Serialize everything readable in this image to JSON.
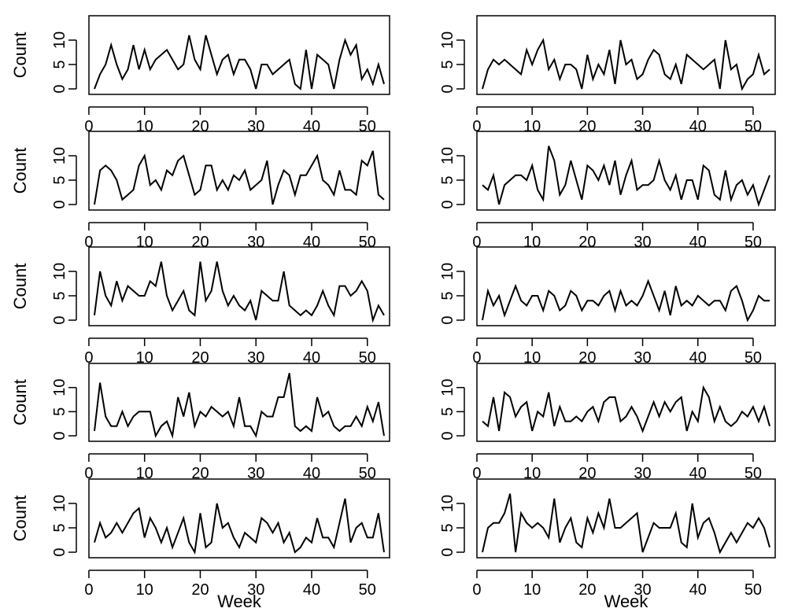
{
  "chart_data": [
    {
      "type": "line",
      "ylabel": "Count",
      "xlabel": "",
      "xlim": [
        1,
        53
      ],
      "ylim": [
        0,
        15
      ],
      "xticks": [
        0,
        10,
        20,
        30,
        40,
        50
      ],
      "yticks": [
        0,
        5,
        10
      ],
      "series": [
        {
          "x_start": 1,
          "values": [
            0,
            3,
            5,
            9,
            5,
            2,
            4,
            9,
            4,
            8,
            4,
            6,
            7,
            8,
            6,
            4,
            5,
            11,
            6,
            4,
            11,
            7,
            3,
            6,
            7,
            3,
            6,
            6,
            4,
            0,
            5,
            5,
            3,
            4,
            5,
            6,
            1,
            0,
            8,
            0,
            7,
            6,
            5,
            0,
            6,
            10,
            7,
            9,
            2,
            4,
            1,
            5,
            1
          ]
        }
      ]
    },
    {
      "type": "line",
      "ylabel": "",
      "xlabel": "",
      "xlim": [
        1,
        53
      ],
      "ylim": [
        0,
        15
      ],
      "xticks": [
        0,
        10,
        20,
        30,
        40,
        50
      ],
      "yticks": [
        0,
        5,
        10
      ],
      "series": [
        {
          "x_start": 1,
          "values": [
            0,
            4,
            6,
            5,
            6,
            5,
            4,
            3,
            8,
            5,
            8,
            10,
            4,
            6,
            2,
            5,
            5,
            4,
            0,
            7,
            2,
            5,
            3,
            8,
            1,
            10,
            5,
            6,
            2,
            3,
            6,
            8,
            7,
            3,
            2,
            5,
            1,
            7,
            6,
            5,
            4,
            5,
            6,
            0,
            10,
            4,
            5,
            0,
            2,
            3,
            7,
            3,
            4
          ]
        }
      ]
    },
    {
      "type": "line",
      "ylabel": "Count",
      "xlabel": "",
      "xlim": [
        1,
        53
      ],
      "ylim": [
        0,
        15
      ],
      "xticks": [
        0,
        10,
        20,
        30,
        40,
        50
      ],
      "yticks": [
        0,
        5,
        10
      ],
      "series": [
        {
          "x_start": 1,
          "values": [
            0,
            7,
            8,
            7,
            5,
            1,
            2,
            3,
            8,
            10,
            4,
            5,
            3,
            7,
            6,
            9,
            10,
            6,
            2,
            3,
            8,
            8,
            3,
            5,
            3,
            6,
            5,
            7,
            3,
            4,
            5,
            9,
            0,
            4,
            7,
            6,
            2,
            6,
            6,
            8,
            10,
            5,
            4,
            2,
            7,
            3,
            3,
            2,
            9,
            8,
            11,
            2,
            1
          ]
        }
      ]
    },
    {
      "type": "line",
      "ylabel": "",
      "xlabel": "",
      "xlim": [
        1,
        53
      ],
      "ylim": [
        0,
        15
      ],
      "xticks": [
        0,
        10,
        20,
        30,
        40,
        50
      ],
      "yticks": [
        0,
        5,
        10
      ],
      "series": [
        {
          "x_start": 1,
          "values": [
            4,
            3,
            6,
            0,
            4,
            5,
            6,
            6,
            5,
            8,
            3,
            1,
            12,
            9,
            2,
            4,
            9,
            5,
            1,
            8,
            7,
            5,
            8,
            4,
            9,
            2,
            6,
            9,
            3,
            4,
            4,
            5,
            9,
            5,
            3,
            6,
            1,
            5,
            5,
            1,
            8,
            7,
            2,
            1,
            7,
            1,
            4,
            5,
            2,
            4,
            0,
            3,
            6
          ]
        }
      ]
    },
    {
      "type": "line",
      "ylabel": "Count",
      "xlabel": "",
      "xlim": [
        1,
        53
      ],
      "ylim": [
        0,
        15
      ],
      "xticks": [
        0,
        10,
        20,
        30,
        40,
        50
      ],
      "yticks": [
        0,
        5,
        10
      ],
      "series": [
        {
          "x_start": 1,
          "values": [
            1,
            10,
            5,
            3,
            8,
            4,
            7,
            6,
            5,
            5,
            8,
            7,
            12,
            5,
            2,
            4,
            6,
            2,
            1,
            12,
            4,
            6,
            12,
            6,
            3,
            5,
            3,
            2,
            4,
            0,
            6,
            5,
            4,
            4,
            10,
            3,
            2,
            1,
            2,
            1,
            3,
            6,
            3,
            1,
            7,
            7,
            5,
            6,
            8,
            6,
            0,
            3,
            1
          ]
        }
      ]
    },
    {
      "type": "line",
      "ylabel": "",
      "xlabel": "",
      "xlim": [
        1,
        53
      ],
      "ylim": [
        0,
        15
      ],
      "xticks": [
        0,
        10,
        20,
        30,
        40,
        50
      ],
      "yticks": [
        0,
        5,
        10
      ],
      "series": [
        {
          "x_start": 1,
          "values": [
            0,
            6,
            3,
            5,
            1,
            4,
            7,
            4,
            3,
            5,
            5,
            2,
            6,
            5,
            2,
            3,
            6,
            5,
            2,
            4,
            4,
            3,
            5,
            6,
            2,
            6,
            3,
            4,
            3,
            5,
            8,
            5,
            2,
            6,
            1,
            7,
            3,
            4,
            3,
            5,
            4,
            3,
            4,
            4,
            2,
            6,
            7,
            4,
            0,
            2,
            5,
            4,
            4
          ]
        }
      ]
    },
    {
      "type": "line",
      "ylabel": "Count",
      "xlabel": "",
      "xlim": [
        1,
        53
      ],
      "ylim": [
        0,
        15
      ],
      "xticks": [
        0,
        10,
        20,
        30,
        40,
        50
      ],
      "yticks": [
        0,
        5,
        10
      ],
      "series": [
        {
          "x_start": 1,
          "values": [
            1,
            11,
            4,
            2,
            2,
            5,
            2,
            4,
            5,
            5,
            5,
            0,
            2,
            3,
            0,
            8,
            4,
            9,
            2,
            5,
            4,
            6,
            5,
            4,
            5,
            2,
            8,
            2,
            2,
            0,
            5,
            4,
            4,
            8,
            8,
            13,
            2,
            1,
            2,
            1,
            8,
            4,
            5,
            2,
            1,
            2,
            2,
            4,
            2,
            6,
            3,
            7,
            0
          ]
        }
      ]
    },
    {
      "type": "line",
      "ylabel": "",
      "xlabel": "",
      "xlim": [
        1,
        53
      ],
      "ylim": [
        0,
        15
      ],
      "xticks": [
        0,
        10,
        20,
        30,
        40,
        50
      ],
      "yticks": [
        0,
        5,
        10
      ],
      "series": [
        {
          "x_start": 1,
          "values": [
            3,
            2,
            8,
            1,
            9,
            8,
            4,
            6,
            7,
            1,
            5,
            4,
            9,
            2,
            6,
            3,
            3,
            4,
            3,
            5,
            6,
            3,
            7,
            8,
            8,
            3,
            4,
            6,
            4,
            1,
            4,
            7,
            4,
            7,
            5,
            7,
            8,
            1,
            5,
            3,
            10,
            8,
            3,
            6,
            3,
            2,
            3,
            5,
            4,
            6,
            3,
            6,
            2
          ]
        }
      ]
    },
    {
      "type": "line",
      "ylabel": "Count",
      "xlabel": "Week",
      "xlim": [
        1,
        53
      ],
      "ylim": [
        0,
        15
      ],
      "xticks": [
        0,
        10,
        20,
        30,
        40,
        50
      ],
      "yticks": [
        0,
        5,
        10
      ],
      "series": [
        {
          "x_start": 1,
          "values": [
            2,
            6,
            3,
            4,
            6,
            4,
            6,
            8,
            9,
            3,
            7,
            5,
            2,
            5,
            1,
            4,
            7,
            2,
            0,
            8,
            1,
            2,
            10,
            5,
            6,
            3,
            1,
            4,
            3,
            2,
            7,
            6,
            4,
            6,
            2,
            4,
            0,
            1,
            3,
            2,
            7,
            3,
            3,
            1,
            6,
            11,
            2,
            5,
            6,
            3,
            3,
            8,
            0
          ]
        }
      ]
    },
    {
      "type": "line",
      "ylabel": "",
      "xlabel": "Week",
      "xlim": [
        1,
        53
      ],
      "ylim": [
        0,
        15
      ],
      "xticks": [
        0,
        10,
        20,
        30,
        40,
        50
      ],
      "yticks": [
        0,
        5,
        10
      ],
      "series": [
        {
          "x_start": 1,
          "values": [
            0,
            5,
            6,
            6,
            8,
            12,
            0,
            8,
            6,
            5,
            6,
            5,
            3,
            11,
            2,
            5,
            7,
            2,
            1,
            7,
            4,
            8,
            5,
            11,
            5,
            5,
            6,
            7,
            8,
            0,
            3,
            6,
            5,
            5,
            5,
            8,
            2,
            1,
            10,
            3,
            6,
            7,
            4,
            0,
            2,
            4,
            2,
            4,
            6,
            5,
            7,
            5,
            1
          ]
        }
      ]
    }
  ]
}
